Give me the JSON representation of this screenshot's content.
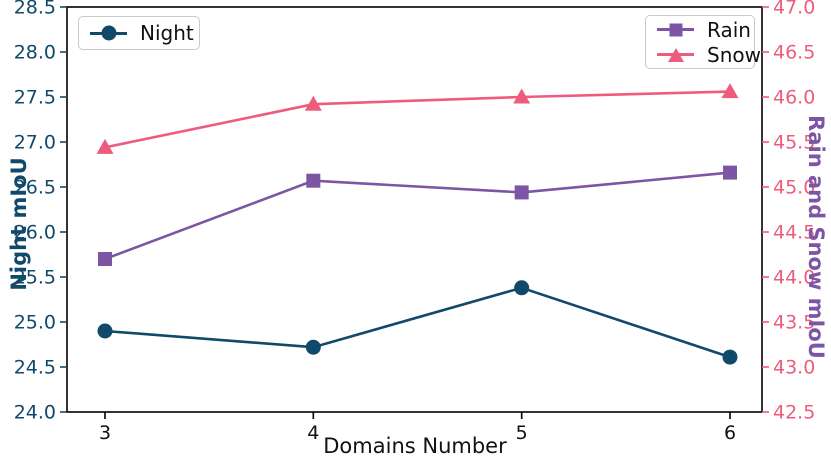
{
  "chart_data": {
    "type": "line",
    "title": "",
    "xlabel": "Domains Number",
    "x": [
      3,
      4,
      5,
      6
    ],
    "x_tick_labels": [
      "3",
      "4",
      "5",
      "6"
    ],
    "left_axis": {
      "label": "Night mIoU",
      "min": 24.0,
      "max": 28.5,
      "tick_step": 0.5,
      "color": "#11496B"
    },
    "right_axis": {
      "label": "Rain and Snow mIoU",
      "min": 42.5,
      "max": 47.0,
      "tick_step": 0.5,
      "tick_color": "#EE5C7D",
      "label_color": "#7D55A5"
    },
    "grid": false,
    "legend_position": [
      "upper-left",
      "upper-right"
    ],
    "series": [
      {
        "name": "Night",
        "axis": "left",
        "marker": "circle",
        "color": "#11496B",
        "values": [
          24.9,
          24.72,
          25.38,
          24.61
        ]
      },
      {
        "name": "Rain",
        "axis": "right",
        "marker": "square",
        "color": "#7D55A5",
        "values": [
          44.2,
          45.07,
          44.94,
          45.16
        ]
      },
      {
        "name": "Snow",
        "axis": "right",
        "marker": "triangle",
        "color": "#EE5C7D",
        "values": [
          45.44,
          45.92,
          46.0,
          46.06
        ]
      }
    ]
  }
}
